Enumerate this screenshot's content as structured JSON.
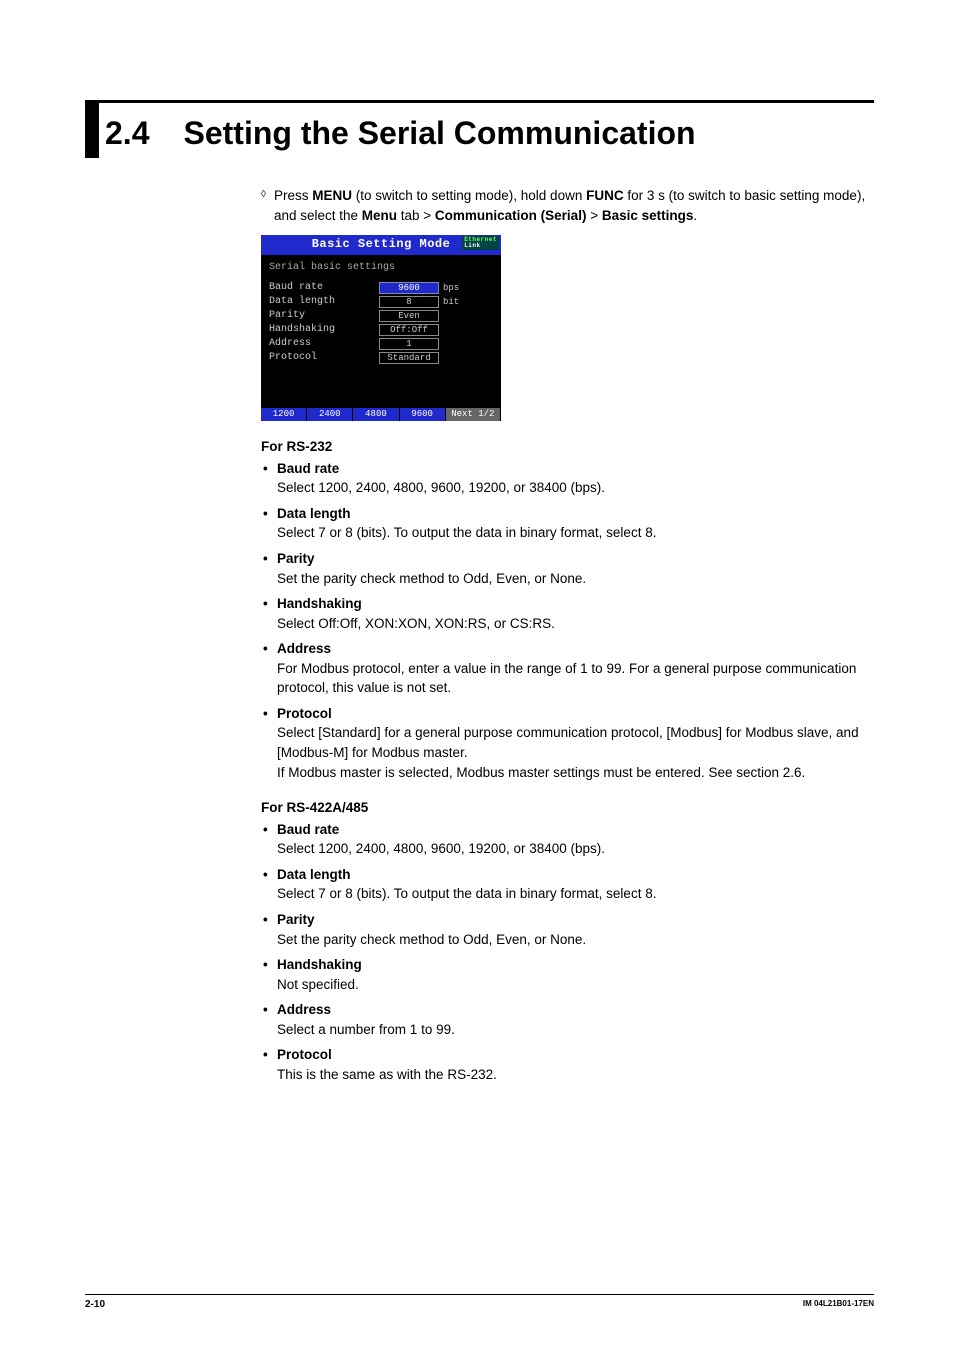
{
  "section": {
    "number": "2.4",
    "title": "Setting the Serial Communication"
  },
  "intro": {
    "prefix": "Press ",
    "b1": "MENU",
    "mid1": " (to switch to setting mode), hold down ",
    "b2": "FUNC",
    "mid2": " for 3 s (to switch to basic setting mode), and select the ",
    "b3": "Menu",
    "mid3": " tab > ",
    "b4": "Communication (Serial)",
    "mid4": " > ",
    "b5": "Basic settings",
    "suffix": "."
  },
  "screenshot": {
    "title": "Basic Setting Mode",
    "eth_top": "Ethernet",
    "eth_bot": "Link",
    "subtitle": "Serial basic settings",
    "rows": [
      {
        "label": "Baud rate",
        "value": "9600",
        "unit": "bps",
        "selected": true
      },
      {
        "label": "Data length",
        "value": "8",
        "unit": "bit",
        "selected": false
      },
      {
        "label": "Parity",
        "value": "Even",
        "unit": "",
        "selected": false
      },
      {
        "label": "Handshaking",
        "value": "Off:Off",
        "unit": "",
        "selected": false
      },
      {
        "label": "Address",
        "value": "1",
        "unit": "",
        "selected": false
      },
      {
        "label": "Protocol",
        "value": "Standard",
        "unit": "",
        "selected": false
      }
    ],
    "softkeys": [
      "1200",
      "2400",
      "4800",
      "9600"
    ],
    "next": "Next 1/2"
  },
  "rs232": {
    "title": "For RS-232",
    "items": [
      {
        "title": "Baud rate",
        "desc": "Select 1200, 2400, 4800, 9600, 19200, or 38400 (bps)."
      },
      {
        "title": "Data length",
        "desc": "Select 7 or 8 (bits). To output the data in binary format, select 8."
      },
      {
        "title": "Parity",
        "desc": "Set the parity check method to Odd, Even, or None."
      },
      {
        "title": "Handshaking",
        "desc": "Select Off:Off, XON:XON, XON:RS, or CS:RS."
      },
      {
        "title": "Address",
        "desc": "For Modbus protocol, enter a value in the range of 1 to 99. For a general purpose communication protocol, this value is not set."
      },
      {
        "title": "Protocol",
        "desc": "Select [Standard] for a general purpose communication protocol, [Modbus] for Modbus slave, and [Modbus-M] for Modbus master.",
        "desc2": "If Modbus master is selected, Modbus master settings must be entered. See section 2.6."
      }
    ]
  },
  "rs422": {
    "title": "For RS-422A/485",
    "items": [
      {
        "title": "Baud rate",
        "desc": "Select 1200, 2400, 4800, 9600, 19200, or 38400 (bps)."
      },
      {
        "title": "Data length",
        "desc": "Select 7 or 8 (bits). To output the data in binary format, select 8."
      },
      {
        "title": "Parity",
        "desc": "Set the parity check method to Odd, Even, or None."
      },
      {
        "title": "Handshaking",
        "desc": "Not specified."
      },
      {
        "title": "Address",
        "desc": "Select a number from 1 to 99."
      },
      {
        "title": "Protocol",
        "desc": "This is the same as with the RS-232."
      }
    ]
  },
  "footer": {
    "page": "2-10",
    "doc": "IM 04L21B01-17EN"
  }
}
